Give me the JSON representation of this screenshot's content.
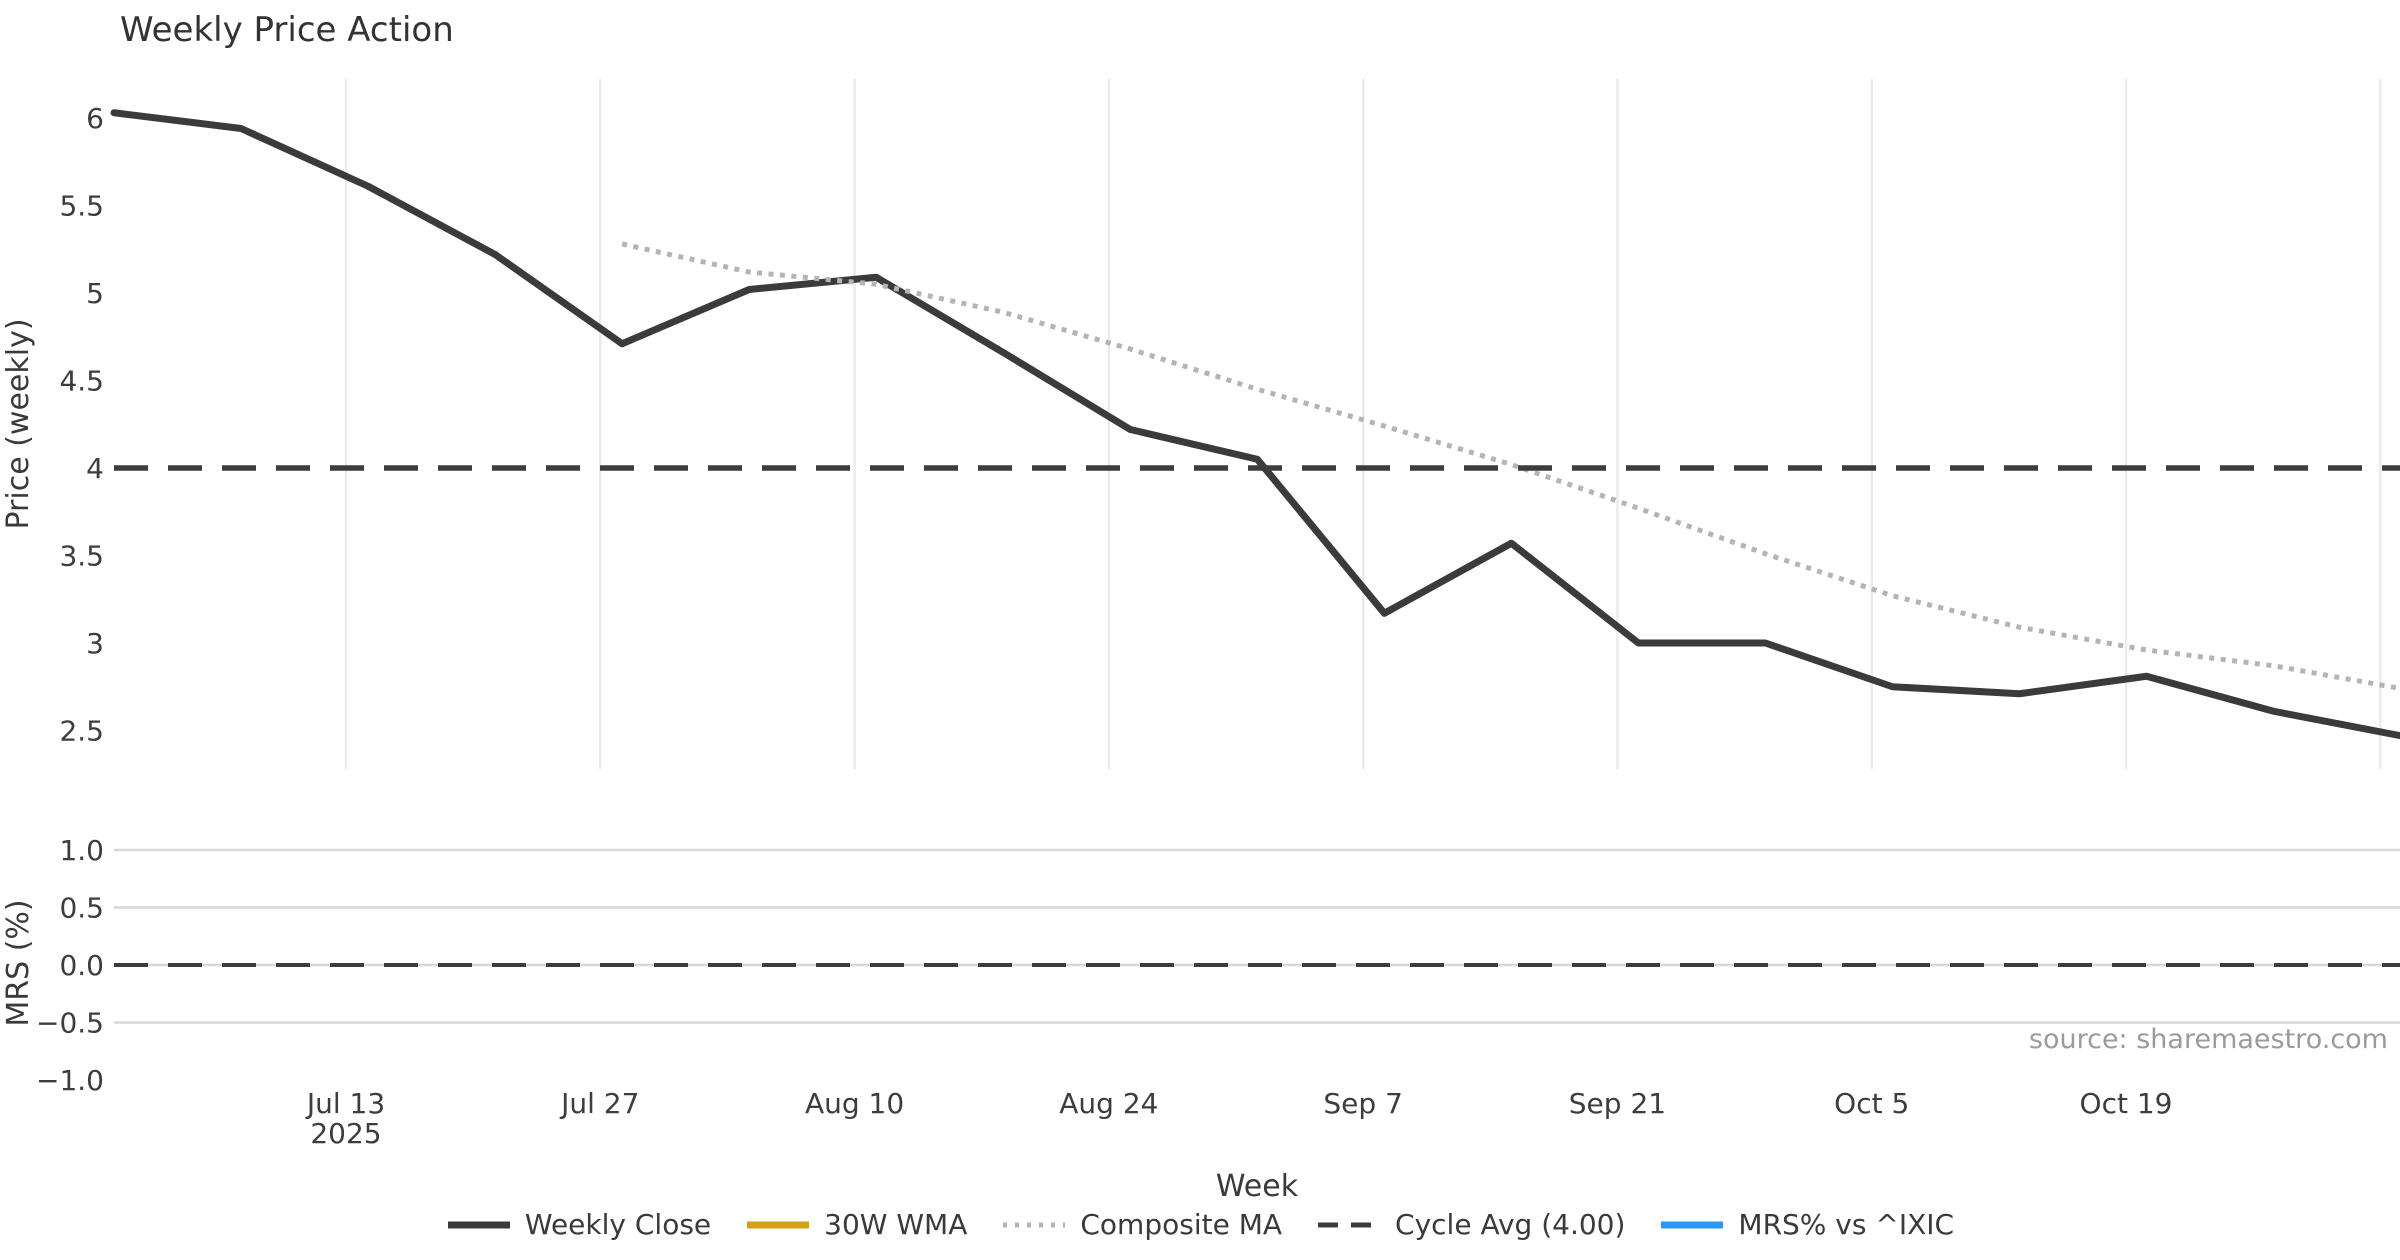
{
  "title": "Weekly Price Action",
  "source_note": "source: sharemaestro.com",
  "chart_data": {
    "type": "line",
    "title": "Weekly Price Action",
    "xlabel": "Week",
    "x_unit": "week",
    "x_tick_labels": [
      "Jul 13",
      "Jul 27",
      "Aug 10",
      "Aug 24",
      "Sep 7",
      "Sep 21",
      "Oct 5",
      "Oct 19"
    ],
    "x_first_tick_year": "2025",
    "panels": [
      {
        "name": "price",
        "ylabel": "Price (weekly)",
        "ylim": [
          2.28,
          6.22
        ],
        "x_grid": true,
        "y_grid": false,
        "yticks": [
          {
            "label": "6",
            "value": 6
          },
          {
            "label": "5.5",
            "value": 5.5
          },
          {
            "label": "5",
            "value": 5
          },
          {
            "label": "4.5",
            "value": 4.5
          },
          {
            "label": "4",
            "value": 4
          },
          {
            "label": "3.5",
            "value": 3.5
          },
          {
            "label": "3",
            "value": 3
          },
          {
            "label": "2.5",
            "value": 2.5
          }
        ],
        "series": [
          {
            "name": "Weekly Close",
            "color": "#3b3b3b",
            "style": "solid",
            "week_start": 0,
            "values": [
              6.03,
              5.94,
              5.61,
              5.22,
              4.71,
              5.02,
              5.09,
              4.66,
              4.22,
              4.05,
              3.17,
              3.57,
              3.0,
              3.0,
              2.75,
              2.71,
              2.81,
              2.61,
              2.47
            ]
          },
          {
            "name": "30W WMA",
            "color": "#d4a017",
            "style": "solid",
            "week_start": 0,
            "values": []
          },
          {
            "name": "Composite MA",
            "color": "#b4b4b4",
            "style": "dotted",
            "week_start": 4,
            "values": [
              5.28,
              5.12,
              5.05,
              4.89,
              4.68,
              4.45,
              4.24,
              4.02,
              3.77,
              3.51,
              3.27,
              3.09,
              2.96,
              2.87,
              2.74
            ]
          },
          {
            "name": "Cycle Avg (4.00)",
            "color": "#3c3c3c",
            "style": "dashed",
            "constant": 4.0
          }
        ]
      },
      {
        "name": "mrs",
        "ylabel": "MRS (%)",
        "ylim": [
          -1.04,
          1.2
        ],
        "x_grid": false,
        "y_grid": true,
        "yticks": [
          {
            "label": "1.0",
            "value": 1
          },
          {
            "label": "0.5",
            "value": 0.5
          },
          {
            "label": "0.0",
            "value": 0
          },
          {
            "label": "−0.5",
            "value": -0.5
          },
          {
            "label": "−1.0",
            "value": -1
          }
        ],
        "series": [
          {
            "name": "MRS% vs ^IXIC",
            "color": "#2e96ed",
            "style": "solid",
            "week_start": 0,
            "values": []
          },
          {
            "name": "zero-reference",
            "color": "#3c3c3c",
            "style": "dashed",
            "constant": 0.0
          }
        ]
      }
    ],
    "legend": [
      {
        "label": "Weekly Close",
        "color": "#3b3b3b",
        "style": "solid"
      },
      {
        "label": "30W WMA",
        "color": "#d4a017",
        "style": "solid"
      },
      {
        "label": "Composite MA",
        "color": "#b4b4b4",
        "style": "dotted"
      },
      {
        "label": "Cycle Avg (4.00)",
        "color": "#3c3c3c",
        "style": "dashed"
      },
      {
        "label": "MRS% vs ^IXIC",
        "color": "#2e96ed",
        "style": "solid"
      }
    ]
  }
}
